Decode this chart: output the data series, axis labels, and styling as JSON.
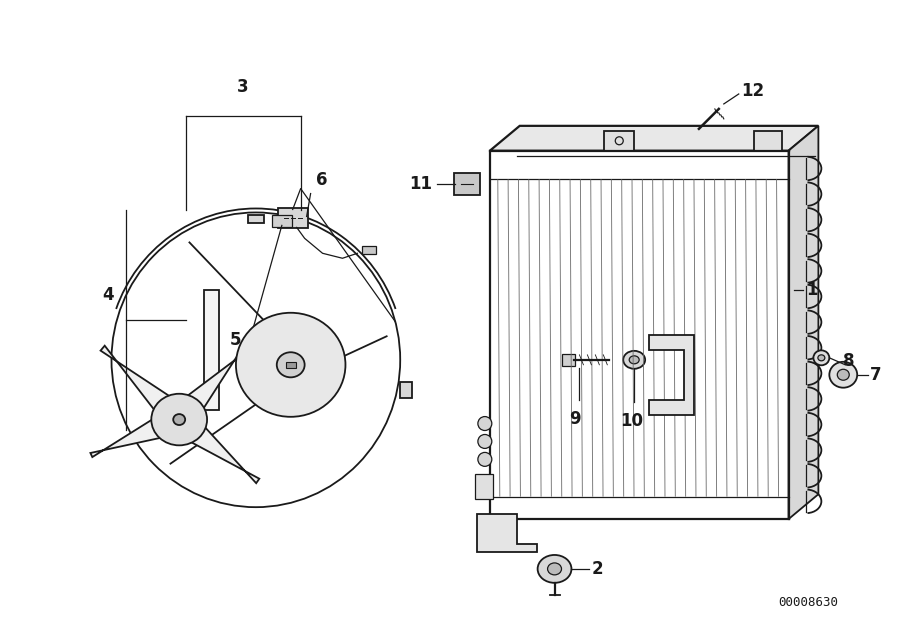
{
  "bg_color": "#ffffff",
  "line_color": "#1a1a1a",
  "fig_width": 9.0,
  "fig_height": 6.35,
  "dpi": 100,
  "diagram_id": "00008630"
}
